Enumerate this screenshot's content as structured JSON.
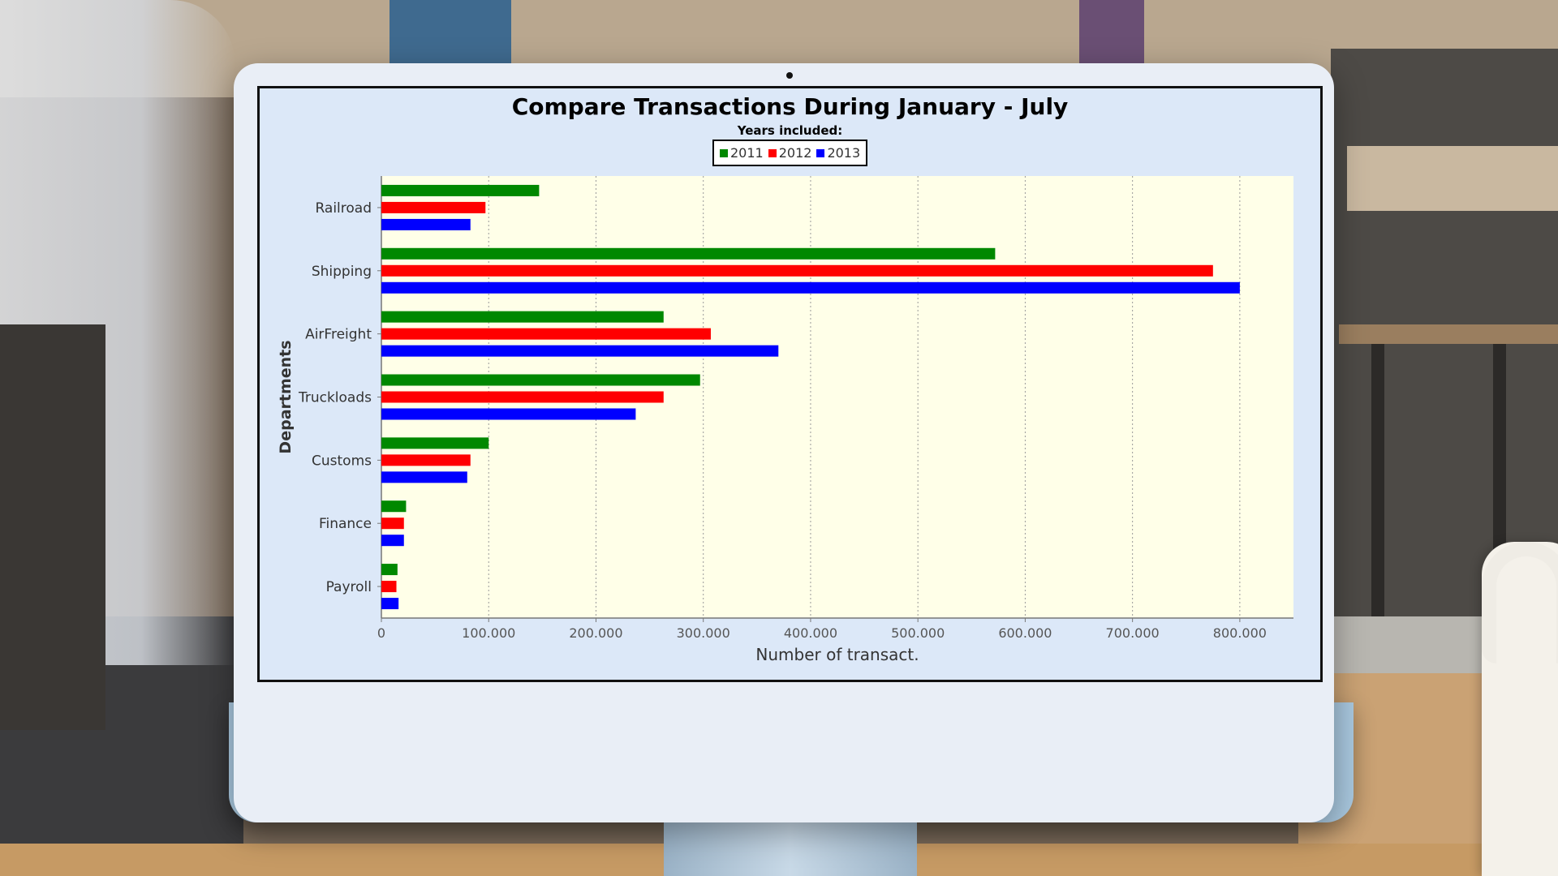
{
  "colors": {
    "2011": "#008800",
    "2012": "#ff0000",
    "2013": "#0000ff",
    "plot_background": "#ffffe8",
    "panel_background": "#dce8f8"
  },
  "chart_data": {
    "type": "bar",
    "orientation": "horizontal",
    "title": "Compare Transactions During January - July",
    "subtitle": "Years included:",
    "xlabel": "Number of transact.",
    "ylabel": "Departments",
    "categories": [
      "Railroad",
      "Shipping",
      "AirFreight",
      "Truckloads",
      "Customs",
      "Finance",
      "Payroll"
    ],
    "series": [
      {
        "name": "2011",
        "values": [
          147000,
          572000,
          263000,
          297000,
          100000,
          23000,
          15000
        ]
      },
      {
        "name": "2012",
        "values": [
          97000,
          775000,
          307000,
          263000,
          83000,
          21000,
          14000
        ]
      },
      {
        "name": "2013",
        "values": [
          83000,
          800000,
          370000,
          237000,
          80000,
          21000,
          16000
        ]
      }
    ],
    "xlim": [
      0,
      850000
    ],
    "xticks": [
      0,
      100000,
      200000,
      300000,
      400000,
      500000,
      600000,
      700000,
      800000
    ],
    "xtick_labels": [
      "0",
      "100.000",
      "200.000",
      "300.000",
      "400.000",
      "500.000",
      "600.000",
      "700.000",
      "800.000"
    ],
    "grid": "vertical dashed",
    "legend_position": "top-center"
  }
}
